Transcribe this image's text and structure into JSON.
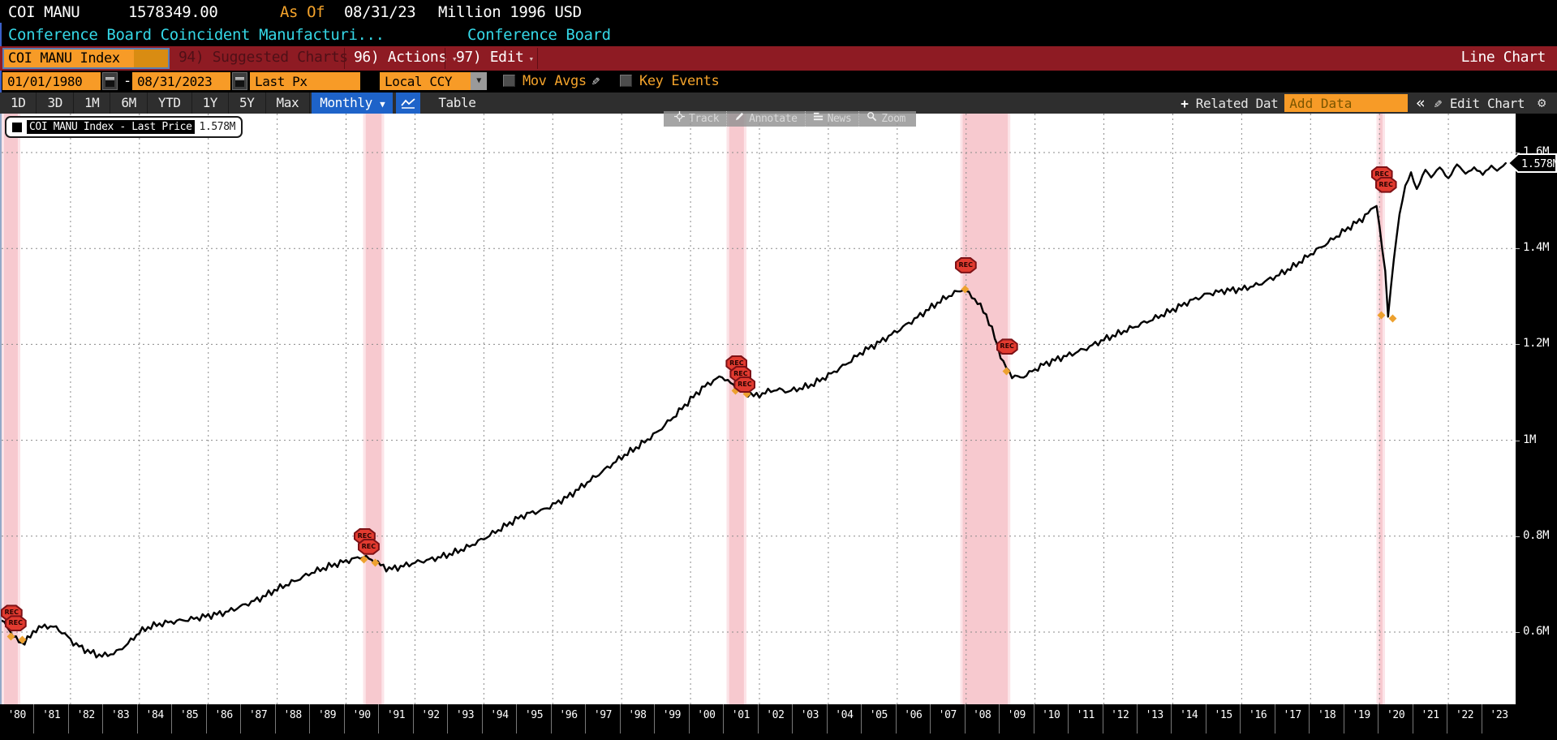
{
  "window": {
    "ticker": "COI MANU",
    "last_value": "1578349.00",
    "as_of_label": "As Of",
    "as_of_date": "08/31/23",
    "units": "Million 1996 USD",
    "description": "Conference Board Coincident Manufacturi...",
    "source": "Conference Board"
  },
  "toolbar": {
    "security_input": "COI MANU Index",
    "suggested_charts": "94) Suggested Charts",
    "actions": "96) Actions",
    "edit": "97) Edit",
    "chart_type": "Line Chart"
  },
  "controls": {
    "start_date": "01/01/1980",
    "range_sep": "-",
    "end_date": "08/31/2023",
    "px_type": "Last Px",
    "currency": "Local CCY",
    "mov_avgs_label": "Mov Avgs",
    "key_events_label": "Key Events"
  },
  "tabbar": {
    "periods": [
      "1D",
      "3D",
      "1M",
      "6M",
      "YTD",
      "1Y",
      "5Y",
      "Max"
    ],
    "frequency": "Monthly",
    "table_label": "Table",
    "related_label": "Related Dat",
    "add_data_placeholder": "Add Data",
    "edit_chart_label": "Edit Chart"
  },
  "chart_tools": [
    {
      "icon": "crosshair-icon",
      "label": "Track"
    },
    {
      "icon": "pencil-icon",
      "label": "Annotate"
    },
    {
      "icon": "news-icon",
      "label": "News"
    },
    {
      "icon": "magnifier-icon",
      "label": "Zoom"
    }
  ],
  "legend": {
    "series_name": "COI MANU Index - Last Price",
    "value": "1.578M"
  },
  "colors": {
    "orange": "#f79b27",
    "cyan": "#35d7e6",
    "red_bar": "#8e1b23",
    "dim_red": "#4f1017",
    "blue": "#1e63c9",
    "band": "#f7c9cf",
    "band_edge": "#fce4e8",
    "grid": "#8a8a8a",
    "line": "#000000",
    "flag": "#e23b30",
    "flag_border": "#7d1116",
    "dot": "#eda12f"
  },
  "chart_data": {
    "type": "line",
    "title": "COI MANU Index - Last Price",
    "unit": "Million 1996 USD",
    "frequency": "Monthly",
    "last_price": 1578349.0,
    "x_range": [
      1980,
      2024
    ],
    "x_ticks": [
      "'80",
      "'81",
      "'82",
      "'83",
      "'84",
      "'85",
      "'86",
      "'87",
      "'88",
      "'89",
      "'90",
      "'91",
      "'92",
      "'93",
      "'94",
      "'95",
      "'96",
      "'97",
      "'98",
      "'99",
      "'00",
      "'01",
      "'02",
      "'03",
      "'04",
      "'05",
      "'06",
      "'07",
      "'08",
      "'09",
      "'10",
      "'11",
      "'12",
      "'13",
      "'14",
      "'15",
      "'16",
      "'17",
      "'18",
      "'19",
      "'20",
      "'21",
      "'22",
      "'23"
    ],
    "y_ticks": [
      {
        "label": "1.6M",
        "value": 1.6
      },
      {
        "label": "1.4M",
        "value": 1.4
      },
      {
        "label": "1.2M",
        "value": 1.2
      },
      {
        "label": "1M",
        "value": 1.0
      },
      {
        "label": "0.8M",
        "value": 0.8
      },
      {
        "label": "0.6M",
        "value": 0.6
      }
    ],
    "last_price_tag": "1.578M",
    "grid_x_every_years": 2,
    "anchors_million": [
      [
        1980.0,
        0.624
      ],
      [
        1980.17,
        0.61
      ],
      [
        1980.42,
        0.585
      ],
      [
        1980.58,
        0.576
      ],
      [
        1980.83,
        0.59
      ],
      [
        1981.0,
        0.607
      ],
      [
        1981.33,
        0.613
      ],
      [
        1981.58,
        0.609
      ],
      [
        1981.83,
        0.596
      ],
      [
        1982.08,
        0.578
      ],
      [
        1982.42,
        0.563
      ],
      [
        1982.75,
        0.553
      ],
      [
        1983.0,
        0.551
      ],
      [
        1983.33,
        0.558
      ],
      [
        1983.67,
        0.576
      ],
      [
        1984.0,
        0.6
      ],
      [
        1984.33,
        0.612
      ],
      [
        1984.67,
        0.618
      ],
      [
        1985.0,
        0.622
      ],
      [
        1985.5,
        0.627
      ],
      [
        1986.0,
        0.634
      ],
      [
        1986.5,
        0.641
      ],
      [
        1987.0,
        0.655
      ],
      [
        1987.5,
        0.67
      ],
      [
        1988.0,
        0.69
      ],
      [
        1988.5,
        0.706
      ],
      [
        1989.0,
        0.724
      ],
      [
        1989.5,
        0.737
      ],
      [
        1990.0,
        0.748
      ],
      [
        1990.5,
        0.758
      ],
      [
        1990.75,
        0.75
      ],
      [
        1991.0,
        0.74
      ],
      [
        1991.25,
        0.731
      ],
      [
        1991.58,
        0.736
      ],
      [
        1992.0,
        0.745
      ],
      [
        1992.5,
        0.752
      ],
      [
        1993.0,
        0.762
      ],
      [
        1993.5,
        0.776
      ],
      [
        1994.0,
        0.795
      ],
      [
        1994.5,
        0.816
      ],
      [
        1995.0,
        0.838
      ],
      [
        1995.33,
        0.848
      ],
      [
        1995.67,
        0.853
      ],
      [
        1996.0,
        0.865
      ],
      [
        1996.5,
        0.885
      ],
      [
        1997.0,
        0.912
      ],
      [
        1997.5,
        0.938
      ],
      [
        1998.0,
        0.965
      ],
      [
        1998.5,
        0.988
      ],
      [
        1999.0,
        1.015
      ],
      [
        1999.5,
        1.048
      ],
      [
        2000.0,
        1.085
      ],
      [
        2000.33,
        1.108
      ],
      [
        2000.67,
        1.125
      ],
      [
        2000.92,
        1.133
      ],
      [
        2001.17,
        1.118
      ],
      [
        2001.5,
        1.102
      ],
      [
        2001.92,
        1.092
      ],
      [
        2002.17,
        1.1
      ],
      [
        2002.5,
        1.106
      ],
      [
        2002.83,
        1.102
      ],
      [
        2003.17,
        1.108
      ],
      [
        2003.5,
        1.115
      ],
      [
        2004.0,
        1.135
      ],
      [
        2004.5,
        1.158
      ],
      [
        2005.0,
        1.185
      ],
      [
        2005.5,
        1.205
      ],
      [
        2006.0,
        1.228
      ],
      [
        2006.5,
        1.252
      ],
      [
        2007.0,
        1.278
      ],
      [
        2007.42,
        1.298
      ],
      [
        2007.75,
        1.31
      ],
      [
        2007.92,
        1.315
      ],
      [
        2008.25,
        1.295
      ],
      [
        2008.58,
        1.262
      ],
      [
        2008.83,
        1.215
      ],
      [
        2009.08,
        1.16
      ],
      [
        2009.33,
        1.135
      ],
      [
        2009.58,
        1.13
      ],
      [
        2009.83,
        1.14
      ],
      [
        2010.25,
        1.158
      ],
      [
        2010.67,
        1.17
      ],
      [
        2011.0,
        1.178
      ],
      [
        2011.5,
        1.192
      ],
      [
        2012.0,
        1.21
      ],
      [
        2012.5,
        1.225
      ],
      [
        2013.0,
        1.24
      ],
      [
        2013.5,
        1.255
      ],
      [
        2014.0,
        1.272
      ],
      [
        2014.5,
        1.29
      ],
      [
        2015.0,
        1.305
      ],
      [
        2015.5,
        1.312
      ],
      [
        2016.0,
        1.315
      ],
      [
        2016.5,
        1.325
      ],
      [
        2017.0,
        1.342
      ],
      [
        2017.5,
        1.362
      ],
      [
        2018.0,
        1.388
      ],
      [
        2018.5,
        1.412
      ],
      [
        2019.0,
        1.438
      ],
      [
        2019.5,
        1.462
      ],
      [
        2019.92,
        1.49
      ],
      [
        2020.17,
        1.35
      ],
      [
        2020.25,
        1.259
      ],
      [
        2020.42,
        1.38
      ],
      [
        2020.58,
        1.47
      ],
      [
        2020.75,
        1.53
      ],
      [
        2020.92,
        1.558
      ],
      [
        2021.08,
        1.522
      ],
      [
        2021.33,
        1.565
      ],
      [
        2021.5,
        1.548
      ],
      [
        2021.75,
        1.57
      ],
      [
        2022.0,
        1.545
      ],
      [
        2022.25,
        1.576
      ],
      [
        2022.5,
        1.556
      ],
      [
        2022.75,
        1.568
      ],
      [
        2023.0,
        1.555
      ],
      [
        2023.25,
        1.572
      ],
      [
        2023.42,
        1.562
      ],
      [
        2023.67,
        1.578
      ]
    ],
    "recession_bands": [
      [
        1980.0,
        1980.54
      ],
      [
        1990.5,
        1991.1
      ],
      [
        2001.05,
        2001.62
      ],
      [
        2007.83,
        2009.28
      ],
      [
        2019.92,
        2020.16
      ]
    ],
    "rec_flags": [
      {
        "x": 1980.3,
        "dot_v": 0.592,
        "flag_v": 0.64,
        "count": 2
      },
      {
        "x": 1990.55,
        "dot_v": 0.752,
        "flag_v": 0.8,
        "count": 2
      },
      {
        "x": 2001.35,
        "dot_v": 1.105,
        "flag_v": 1.16,
        "count": 3
      },
      {
        "x": 2008.0,
        "dot_v": 1.315,
        "flag_v": 1.365,
        "count": 1
      },
      {
        "x": 2009.2,
        "dot_v": 1.145,
        "flag_v": 1.195,
        "count": 1
      },
      {
        "x": 2020.08,
        "dot_v": 1.262,
        "flag_v": 1.555,
        "count": 2
      }
    ],
    "flag_label": "REC"
  }
}
